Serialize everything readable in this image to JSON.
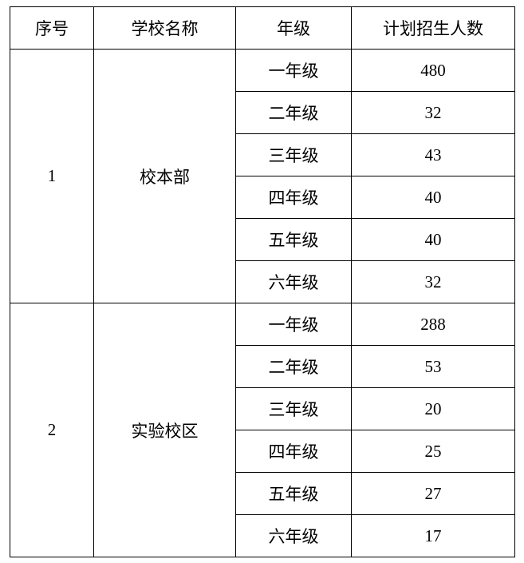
{
  "headers": [
    "序号",
    "学校名称",
    "年级",
    "计划招生人数"
  ],
  "schools": [
    {
      "index": "1",
      "name": "校本部",
      "rows": [
        {
          "grade": "一年级",
          "count": "480"
        },
        {
          "grade": "二年级",
          "count": "32"
        },
        {
          "grade": "三年级",
          "count": "43"
        },
        {
          "grade": "四年级",
          "count": "40"
        },
        {
          "grade": "五年级",
          "count": "40"
        },
        {
          "grade": "六年级",
          "count": "32"
        }
      ]
    },
    {
      "index": "2",
      "name": "实验校区",
      "rows": [
        {
          "grade": "一年级",
          "count": "288"
        },
        {
          "grade": "二年级",
          "count": "53"
        },
        {
          "grade": "三年级",
          "count": "20"
        },
        {
          "grade": "四年级",
          "count": "25"
        },
        {
          "grade": "五年级",
          "count": "27"
        },
        {
          "grade": "六年级",
          "count": "17"
        }
      ]
    }
  ]
}
